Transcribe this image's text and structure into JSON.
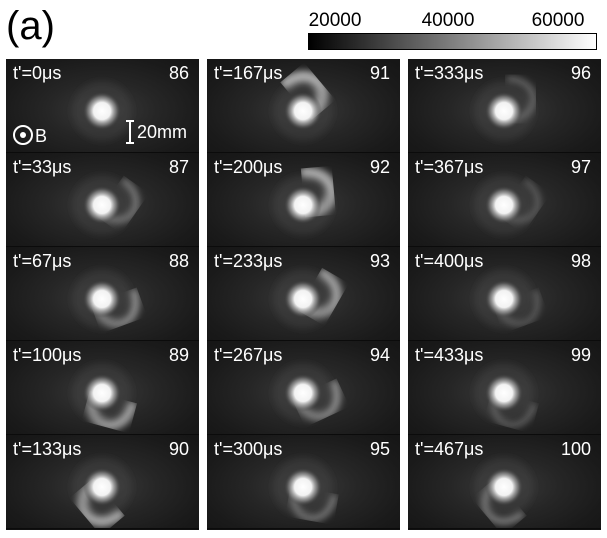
{
  "panel_label": "(a)",
  "colorbar": {
    "ticks": [
      "20000",
      "40000",
      "60000"
    ],
    "colors": [
      "#000000",
      "#ffffff"
    ]
  },
  "annotations": {
    "bfield_label": "B",
    "scale_label": "20mm"
  },
  "columns": [
    {
      "frames": [
        {
          "time": "t'=0μs",
          "number": "86",
          "arm": 0.0
        },
        {
          "time": "t'=33μs",
          "number": "87",
          "arm": 0.35
        },
        {
          "time": "t'=67μs",
          "number": "88",
          "arm": 0.55
        },
        {
          "time": "t'=100μs",
          "number": "89",
          "arm": 0.8
        },
        {
          "time": "t'=133μs",
          "number": "90",
          "arm": 0.9
        }
      ]
    },
    {
      "frames": [
        {
          "time": "t'=167μs",
          "number": "91",
          "arm": 1.0
        },
        {
          "time": "t'=200μs",
          "number": "92",
          "arm": 0.95
        },
        {
          "time": "t'=233μs",
          "number": "93",
          "arm": 0.8
        },
        {
          "time": "t'=267μs",
          "number": "94",
          "arm": 0.55
        },
        {
          "time": "t'=300μs",
          "number": "95",
          "arm": 0.35
        }
      ]
    },
    {
      "frames": [
        {
          "time": "t'=333μs",
          "number": "96",
          "arm": 0.2
        },
        {
          "time": "t'=367μs",
          "number": "97",
          "arm": 0.1
        },
        {
          "time": "t'=400μs",
          "number": "98",
          "arm": 0.1
        },
        {
          "time": "t'=433μs",
          "number": "99",
          "arm": 0.15
        },
        {
          "time": "t'=467μs",
          "number": "100",
          "arm": 0.4
        }
      ]
    }
  ]
}
